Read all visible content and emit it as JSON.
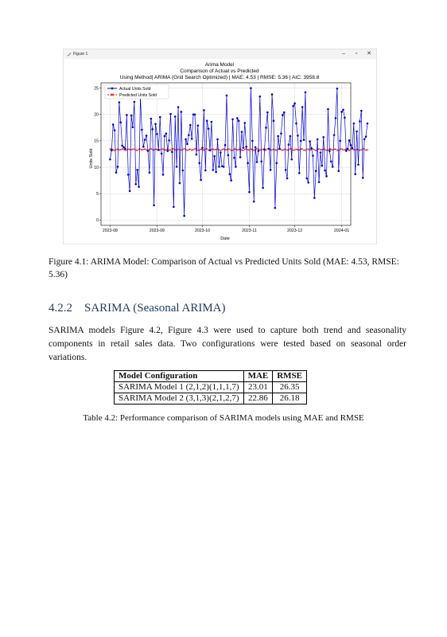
{
  "window": {
    "title": "Figure 1",
    "min_glyph": "–",
    "max_glyph": "▫",
    "close_glyph": "✕",
    "icon": "feather-icon"
  },
  "chart_data": {
    "type": "line",
    "title": "Arima Model",
    "subtitle1": "Comparison of Actual vs Predicted",
    "subtitle2": "Using Method|  ARIMA (Grid Search Optimized) | MAE: 4.53 | RMSE: 5.36 | AIC: 3958.8",
    "xlabel": "Date",
    "ylabel": "Units Sold",
    "x_start": "2023-08-08",
    "x_ticks": [
      "2023-08",
      "2023-09",
      "2023-10",
      "2023-11",
      "2023-12",
      "2024-01"
    ],
    "x_tick_days": [
      0,
      31,
      61,
      92,
      122,
      153
    ],
    "x_range_days": [
      -6,
      159
    ],
    "ylim": [
      -1,
      26
    ],
    "y_ticks": [
      0,
      5,
      10,
      15,
      20,
      25
    ],
    "legend_loc": "upper-left",
    "grid": true,
    "series": [
      {
        "name": "Actual Units Sold",
        "color": "#0000cc",
        "style": "solid",
        "marker": "circle",
        "values": [
          11.5,
          13.2,
          18.1,
          17.0,
          9.0,
          10.1,
          22.3,
          18.5,
          14.1,
          13.8,
          13.5,
          19.9,
          8.6,
          5.5,
          19.8,
          17.6,
          22.4,
          6.8,
          9.5,
          6.3,
          23.3,
          17.1,
          13.9,
          15.2,
          16.0,
          13.1,
          9.0,
          19.2,
          17.2,
          2.8,
          18.2,
          16.3,
          13.3,
          19.5,
          12.6,
          8.6,
          15.9,
          16.4,
          13.1,
          15.1,
          20.1,
          12.9,
          2.5,
          19.6,
          10.1,
          21.4,
          7.0,
          20.5,
          9.4,
          0.8,
          15.3,
          14.4,
          16.1,
          18.0,
          15.4,
          20.0,
          20.0,
          12.4,
          17.9,
          10.8,
          7.6,
          13.7,
          20.8,
          9.4,
          18.8,
          17.3,
          13.2,
          18.6,
          9.5,
          12.1,
          9.1,
          15.3,
          10.1,
          12.8,
          10.2,
          10.1,
          14.2,
          23.6,
          12.3,
          8.7,
          7.5,
          19.1,
          11.8,
          10.1,
          19.3,
          18.8,
          11.9,
          16.7,
          13.7,
          18.4,
          13.9,
          10.8,
          5.3,
          25.0,
          15.0,
          3.5,
          13.8,
          11.0,
          13.1,
          23.4,
          11.1,
          6.1,
          13.4,
          17.5,
          20.4,
          13.5,
          9.5,
          23.8,
          18.8,
          2.3,
          10.8,
          15.9,
          13.5,
          16.4,
          19.9,
          20.4,
          9.5,
          7.9,
          14.3,
          15.9,
          11.5,
          21.6,
          22.1,
          18.3,
          16.0,
          8.9,
          15.0,
          21.4,
          15.2,
          24.2,
          7.9,
          7.1,
          14.9,
          13.6,
          12.2,
          4.2,
          9.3,
          15.3,
          7.2,
          12.8,
          10.3,
          15.7,
          9.4,
          8.3,
          21.0,
          13.1,
          11.1,
          10.1,
          16.1,
          19.3,
          24.9,
          9.3,
          15.0,
          20.5,
          20.9,
          19.4,
          13.1,
          13.5,
          15.1,
          14.2,
          13.6,
          18.3,
          8.7,
          16.8,
          10.5,
          18.7,
          20.7,
          8.0,
          15.3,
          15.8,
          18.3
        ]
      },
      {
        "name": "Predicted Units Sold",
        "color": "#dd0000",
        "style": "dashed",
        "marker": "x",
        "values_summary": "13.2 to 13.5 around a near-constant mean"
      }
    ]
  },
  "caption": "Figure 4.1: ARIMA Model: Comparison of Actual vs Predicted Units Sold (MAE: 4.53, RMSE: 5.36)",
  "section": {
    "number": "4.2.2",
    "title": "SARIMA (Seasonal ARIMA)"
  },
  "paragraph": "SARIMA models Figure 4.2, Figure 4.3 were used to capture both trend and seasonality components in retail sales data. Two configurations were tested based on seasonal order variations.",
  "table": {
    "headers": [
      "Model Configuration",
      "MAE",
      "RMSE"
    ],
    "rows": [
      [
        "SARIMA Model 1 (2,1,2)(1,1,1,7)",
        "23.01",
        "26.35"
      ],
      [
        "SARIMA Model 2 (3,1,3)(2,1,2,7)",
        "22.86",
        "26.18"
      ]
    ],
    "caption": "Table 4.2: Performance comparison of SARIMA models using MAE and RMSE"
  }
}
